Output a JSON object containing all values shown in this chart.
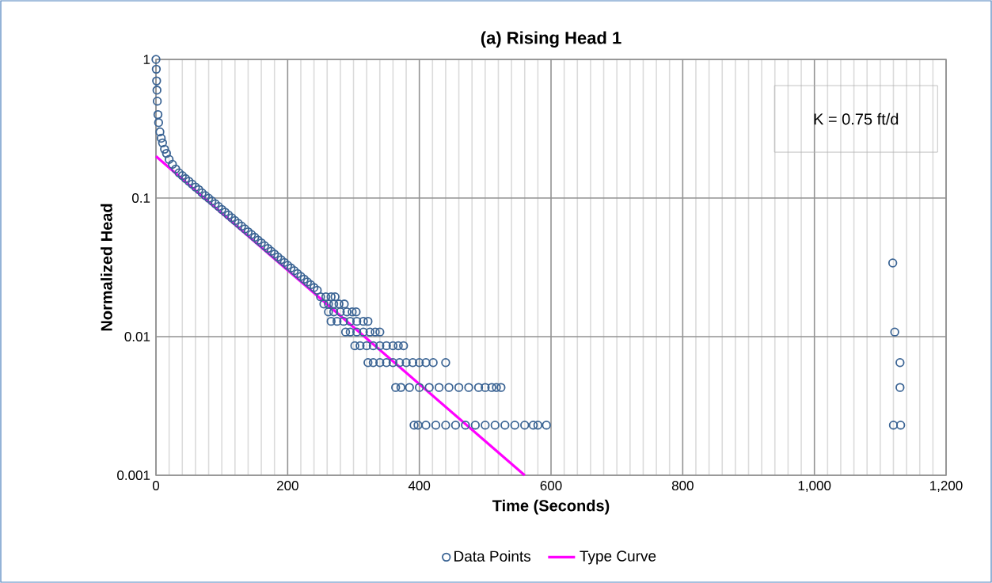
{
  "chart_data": {
    "type": "scatter",
    "title": "(a) Rising Head 1",
    "xlabel": "Time (Seconds)",
    "ylabel": "Normalized Head",
    "annotations": [
      "K = 0.75 ft/d"
    ],
    "xlim": [
      0,
      1200
    ],
    "ylim": [
      0.001,
      1
    ],
    "log": "y",
    "xticks": [
      0,
      200,
      400,
      600,
      800,
      {
        "value": 1000,
        "label": "1,000"
      },
      {
        "value": 1200,
        "label": "1,200"
      }
    ],
    "yticks": [
      0.001,
      0.01,
      0.1,
      1
    ],
    "grid": true,
    "legend": "bottom",
    "series": [
      {
        "name": "Data Points",
        "marker": "circle",
        "color": "#3b6494",
        "x": [
          0,
          0.5,
          1,
          1.5,
          2,
          3,
          4,
          6,
          8,
          10,
          13,
          16,
          20,
          25,
          30,
          35,
          40,
          45,
          50,
          55,
          60,
          65,
          70,
          75,
          80,
          85,
          90,
          95,
          100,
          105,
          110,
          115,
          120,
          125,
          130,
          135,
          140,
          145,
          150,
          155,
          160,
          165,
          170,
          175,
          180,
          185,
          190,
          195,
          200,
          205,
          210,
          215,
          220,
          225,
          230,
          235,
          240,
          245,
          250,
          258,
          266,
          272,
          255,
          262,
          270,
          278,
          286,
          262,
          270,
          280,
          290,
          298,
          304,
          266,
          275,
          285,
          295,
          305,
          315,
          322,
          288,
          295,
          305,
          315,
          325,
          333,
          340,
          302,
          310,
          320,
          330,
          340,
          350,
          360,
          368,
          376,
          322,
          330,
          340,
          350,
          360,
          370,
          380,
          390,
          400,
          410,
          421,
          440,
          364,
          372,
          385,
          400,
          415,
          430,
          445,
          460,
          475,
          490,
          500,
          510,
          517,
          524,
          392,
          398,
          410,
          425,
          440,
          455,
          470,
          485,
          500,
          515,
          530,
          545,
          560,
          573,
          580,
          593,
          1119,
          1122,
          1130,
          1130,
          1120,
          1131
        ],
        "values": [
          1,
          0.85,
          0.7,
          0.6,
          0.5,
          0.4,
          0.35,
          0.3,
          0.27,
          0.25,
          0.225,
          0.21,
          0.19,
          0.175,
          0.162,
          0.152,
          0.145,
          0.138,
          0.132,
          0.126,
          0.12,
          0.115,
          0.109,
          0.104,
          0.0997,
          0.0952,
          0.0909,
          0.0868,
          0.0828,
          0.0791,
          0.0755,
          0.0721,
          0.0688,
          0.0657,
          0.0627,
          0.0599,
          0.0571,
          0.0546,
          0.0521,
          0.0497,
          0.0475,
          0.0453,
          0.0433,
          0.0413,
          0.0394,
          0.0376,
          0.0359,
          0.0343,
          0.0327,
          0.0313,
          0.0299,
          0.0285,
          0.0272,
          0.026,
          0.0248,
          0.0237,
          0.0226,
          0.0216,
          0.0194,
          0.0194,
          0.0194,
          0.0194,
          0.0172,
          0.0172,
          0.0172,
          0.0172,
          0.0172,
          0.0151,
          0.0151,
          0.0151,
          0.0151,
          0.0151,
          0.0151,
          0.0129,
          0.0129,
          0.0129,
          0.0129,
          0.0129,
          0.0129,
          0.0129,
          0.0108,
          0.0108,
          0.0108,
          0.0108,
          0.0108,
          0.0108,
          0.0108,
          0.0086,
          0.0086,
          0.0086,
          0.0086,
          0.0086,
          0.0086,
          0.0086,
          0.0086,
          0.0086,
          0.0065,
          0.0065,
          0.0065,
          0.0065,
          0.0065,
          0.0065,
          0.0065,
          0.0065,
          0.0065,
          0.0065,
          0.0065,
          0.0065,
          0.0043,
          0.0043,
          0.0043,
          0.0043,
          0.0043,
          0.0043,
          0.0043,
          0.0043,
          0.0043,
          0.0043,
          0.0043,
          0.0043,
          0.0043,
          0.0043,
          0.0023,
          0.0023,
          0.0023,
          0.0023,
          0.0023,
          0.0023,
          0.0023,
          0.0023,
          0.0023,
          0.0023,
          0.0023,
          0.0023,
          0.0023,
          0.0023,
          0.0023,
          0.0023,
          0.034,
          0.0108,
          0.0065,
          0.0043,
          0.0023,
          0.0023
        ]
      },
      {
        "name": "Type Curve",
        "type": "line",
        "marker": "none",
        "color": "#ff00ff",
        "x": [
          0,
          560
        ],
        "values": [
          0.2,
          0.001
        ]
      }
    ]
  }
}
